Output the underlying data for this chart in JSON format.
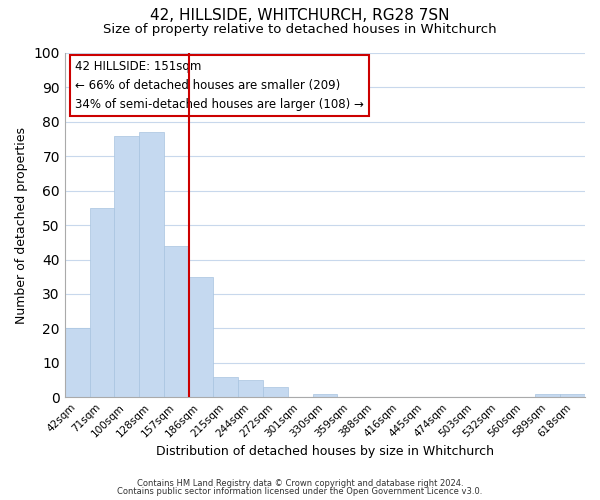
{
  "title": "42, HILLSIDE, WHITCHURCH, RG28 7SN",
  "subtitle": "Size of property relative to detached houses in Whitchurch",
  "xlabel": "Distribution of detached houses by size in Whitchurch",
  "ylabel": "Number of detached properties",
  "bar_labels": [
    "42sqm",
    "71sqm",
    "100sqm",
    "128sqm",
    "157sqm",
    "186sqm",
    "215sqm",
    "244sqm",
    "272sqm",
    "301sqm",
    "330sqm",
    "359sqm",
    "388sqm",
    "416sqm",
    "445sqm",
    "474sqm",
    "503sqm",
    "532sqm",
    "560sqm",
    "589sqm",
    "618sqm"
  ],
  "bar_values": [
    20,
    55,
    76,
    77,
    44,
    35,
    6,
    5,
    3,
    0,
    1,
    0,
    0,
    0,
    0,
    0,
    0,
    0,
    0,
    1,
    1
  ],
  "bar_color": "#c5d9f0",
  "bar_edge_color": "#a8c4e0",
  "vline_pos": 4.5,
  "vline_color": "#cc0000",
  "ylim": [
    0,
    100
  ],
  "annotation_title": "42 HILLSIDE: 151sqm",
  "annotation_line1": "← 66% of detached houses are smaller (209)",
  "annotation_line2": "34% of semi-detached houses are larger (108) →",
  "footer1": "Contains HM Land Registry data © Crown copyright and database right 2024.",
  "footer2": "Contains public sector information licensed under the Open Government Licence v3.0.",
  "background_color": "#ffffff",
  "grid_color": "#c8d8ec",
  "title_fontsize": 11,
  "subtitle_fontsize": 9.5,
  "ylabel_fontsize": 9,
  "xlabel_fontsize": 9,
  "tick_fontsize": 7.5,
  "footer_fontsize": 6,
  "ann_fontsize": 8.5
}
